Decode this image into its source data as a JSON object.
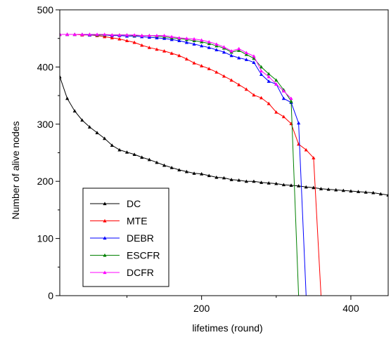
{
  "chart_data": {
    "type": "line",
    "title": "",
    "xlabel": "lifetimes (round)",
    "ylabel": "Number of alive nodes",
    "xlim": [
      10,
      450
    ],
    "ylim": [
      0,
      500
    ],
    "x_ticks": [
      200,
      400
    ],
    "x_ticks_minor": [
      100,
      300
    ],
    "y_ticks": [
      0,
      100,
      200,
      300,
      400,
      500
    ],
    "grid": false,
    "legend_position": "lower-left",
    "series": [
      {
        "name": "DC",
        "color": "#000000",
        "points": [
          [
            10,
            383
          ],
          [
            20,
            345
          ],
          [
            30,
            323
          ],
          [
            40,
            307
          ],
          [
            50,
            295
          ],
          [
            60,
            285
          ],
          [
            70,
            275
          ],
          [
            80,
            263
          ],
          [
            90,
            255
          ],
          [
            100,
            251
          ],
          [
            110,
            247
          ],
          [
            120,
            242
          ],
          [
            130,
            238
          ],
          [
            140,
            233
          ],
          [
            150,
            228
          ],
          [
            160,
            224
          ],
          [
            170,
            220
          ],
          [
            180,
            217
          ],
          [
            190,
            214
          ],
          [
            200,
            213
          ],
          [
            210,
            210
          ],
          [
            220,
            207
          ],
          [
            230,
            206
          ],
          [
            240,
            203
          ],
          [
            250,
            202
          ],
          [
            260,
            200
          ],
          [
            270,
            200
          ],
          [
            280,
            198
          ],
          [
            290,
            197
          ],
          [
            300,
            196
          ],
          [
            310,
            194
          ],
          [
            320,
            193
          ],
          [
            330,
            192
          ],
          [
            340,
            190
          ],
          [
            350,
            189
          ],
          [
            360,
            187
          ],
          [
            370,
            186
          ],
          [
            380,
            185
          ],
          [
            390,
            184
          ],
          [
            400,
            183
          ],
          [
            410,
            182
          ],
          [
            420,
            181
          ],
          [
            430,
            180
          ],
          [
            440,
            178
          ],
          [
            450,
            176
          ]
        ]
      },
      {
        "name": "MTE",
        "color": "#ff0000",
        "points": [
          [
            10,
            457
          ],
          [
            20,
            457
          ],
          [
            30,
            457
          ],
          [
            40,
            456
          ],
          [
            50,
            456
          ],
          [
            60,
            455
          ],
          [
            70,
            453
          ],
          [
            80,
            451
          ],
          [
            90,
            449
          ],
          [
            100,
            446
          ],
          [
            110,
            443
          ],
          [
            120,
            438
          ],
          [
            130,
            434
          ],
          [
            140,
            431
          ],
          [
            150,
            428
          ],
          [
            160,
            424
          ],
          [
            170,
            420
          ],
          [
            180,
            414
          ],
          [
            190,
            407
          ],
          [
            200,
            402
          ],
          [
            210,
            397
          ],
          [
            220,
            391
          ],
          [
            230,
            384
          ],
          [
            240,
            377
          ],
          [
            250,
            369
          ],
          [
            260,
            361
          ],
          [
            270,
            351
          ],
          [
            280,
            346
          ],
          [
            290,
            336
          ],
          [
            300,
            321
          ],
          [
            310,
            313
          ],
          [
            320,
            301
          ],
          [
            330,
            265
          ],
          [
            340,
            255
          ],
          [
            350,
            241
          ],
          [
            360,
            0
          ]
        ]
      },
      {
        "name": "DEBR",
        "color": "#0000ff",
        "points": [
          [
            10,
            457
          ],
          [
            20,
            457
          ],
          [
            30,
            457
          ],
          [
            40,
            457
          ],
          [
            50,
            456
          ],
          [
            60,
            456
          ],
          [
            70,
            456
          ],
          [
            80,
            455
          ],
          [
            90,
            455
          ],
          [
            100,
            454
          ],
          [
            110,
            454
          ],
          [
            120,
            453
          ],
          [
            130,
            452
          ],
          [
            140,
            451
          ],
          [
            150,
            450
          ],
          [
            160,
            448
          ],
          [
            170,
            446
          ],
          [
            180,
            443
          ],
          [
            190,
            440
          ],
          [
            200,
            437
          ],
          [
            210,
            434
          ],
          [
            220,
            430
          ],
          [
            230,
            426
          ],
          [
            240,
            420
          ],
          [
            250,
            416
          ],
          [
            260,
            413
          ],
          [
            270,
            408
          ],
          [
            280,
            387
          ],
          [
            290,
            375
          ],
          [
            300,
            370
          ],
          [
            310,
            345
          ],
          [
            320,
            338
          ],
          [
            330,
            302
          ],
          [
            340,
            0
          ]
        ]
      },
      {
        "name": "ESCFR",
        "color": "#008000",
        "points": [
          [
            10,
            457
          ],
          [
            20,
            457
          ],
          [
            30,
            457
          ],
          [
            40,
            457
          ],
          [
            50,
            457
          ],
          [
            60,
            456
          ],
          [
            70,
            456
          ],
          [
            80,
            456
          ],
          [
            90,
            456
          ],
          [
            100,
            456
          ],
          [
            110,
            455
          ],
          [
            120,
            455
          ],
          [
            130,
            455
          ],
          [
            140,
            454
          ],
          [
            150,
            453
          ],
          [
            160,
            451
          ],
          [
            170,
            450
          ],
          [
            180,
            448
          ],
          [
            190,
            446
          ],
          [
            200,
            444
          ],
          [
            210,
            441
          ],
          [
            220,
            437
          ],
          [
            230,
            433
          ],
          [
            240,
            426
          ],
          [
            250,
            429
          ],
          [
            260,
            422
          ],
          [
            270,
            415
          ],
          [
            280,
            400
          ],
          [
            290,
            388
          ],
          [
            300,
            377
          ],
          [
            310,
            360
          ],
          [
            320,
            340
          ],
          [
            330,
            0
          ]
        ]
      },
      {
        "name": "DCFR",
        "color": "#ff00ff",
        "points": [
          [
            10,
            457
          ],
          [
            20,
            457
          ],
          [
            30,
            457
          ],
          [
            40,
            457
          ],
          [
            50,
            457
          ],
          [
            60,
            457
          ],
          [
            70,
            457
          ],
          [
            80,
            456
          ],
          [
            90,
            456
          ],
          [
            100,
            456
          ],
          [
            110,
            456
          ],
          [
            120,
            455
          ],
          [
            130,
            455
          ],
          [
            140,
            455
          ],
          [
            150,
            455
          ],
          [
            160,
            453
          ],
          [
            170,
            451
          ],
          [
            180,
            450
          ],
          [
            190,
            449
          ],
          [
            200,
            447
          ],
          [
            210,
            444
          ],
          [
            220,
            440
          ],
          [
            230,
            435
          ],
          [
            240,
            428
          ],
          [
            250,
            432
          ],
          [
            260,
            425
          ],
          [
            270,
            419
          ],
          [
            280,
            393
          ],
          [
            290,
            383
          ],
          [
            300,
            370
          ],
          [
            310,
            358
          ],
          [
            320,
            345
          ]
        ]
      }
    ]
  }
}
